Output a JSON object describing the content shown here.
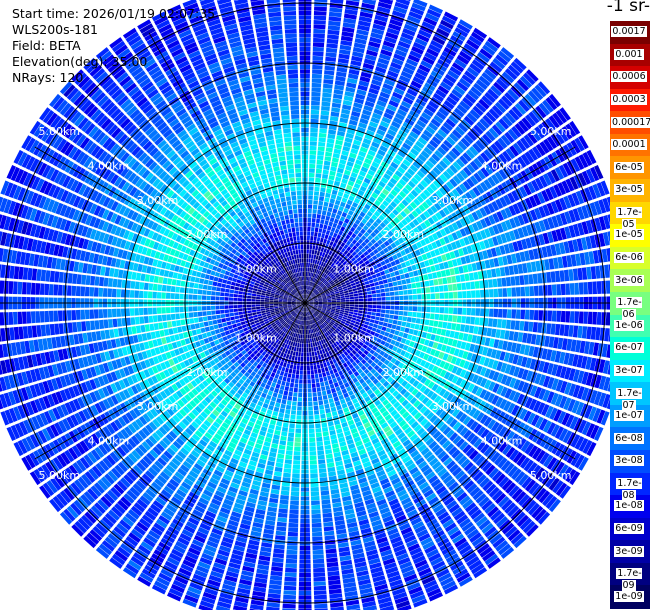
{
  "info": {
    "start_time": "Start time: 2026/01/19 02:07:35",
    "instrument": "WLS200s-181",
    "field": "Field: BETA",
    "elevation": "Elevation(deg): 35.00",
    "nrays": "NRays: 120"
  },
  "colorbar": {
    "unit_title": "-1 sr-",
    "labels": [
      "0.0017",
      "0.001",
      "0.0006",
      "0.0003",
      "0.00017",
      "0.0001",
      "6e-05",
      "3e-05",
      "1.7e-05",
      "1e-05",
      "6e-06",
      "3e-06",
      "1.7e-06",
      "1e-06",
      "6e-07",
      "3e-07",
      "1.7e-07",
      "1e-07",
      "6e-08",
      "3e-08",
      "1.7e-08",
      "1e-08",
      "6e-09",
      "3e-09",
      "1.7e-09",
      "1e-09"
    ],
    "colors": [
      "#7a0000",
      "#a80000",
      "#d40000",
      "#ff1a00",
      "#ff4d00",
      "#ff7300",
      "#ff9500",
      "#ffb300",
      "#ffd700",
      "#ffff00",
      "#d8ff2a",
      "#a8ff55",
      "#78ff80",
      "#40ffb0",
      "#00ffd8",
      "#00ecff",
      "#00c6ff",
      "#009dff",
      "#0074ff",
      "#004dff",
      "#0026ff",
      "#0000ee",
      "#0000cc",
      "#0000a6",
      "#000080",
      "#000060"
    ]
  },
  "range_rings": {
    "labels": [
      "1.00km",
      "2.00km",
      "3.00km",
      "4.00km",
      "5.00km"
    ]
  },
  "chart_data": {
    "type": "heatmap",
    "projection": "polar PPI",
    "field": "BETA",
    "elevation_deg": 35.0,
    "n_rays": 120,
    "range_rings_km": [
      1,
      2,
      3,
      4,
      5
    ],
    "max_range_km": 5.0,
    "radial_profile": {
      "range_km": [
        0.0,
        0.5,
        1.0,
        1.5,
        2.0,
        2.5,
        3.0,
        3.5,
        4.0,
        4.5,
        5.0
      ],
      "log10_beta": [
        -8.8,
        -8.6,
        -8.1,
        -7.3,
        -6.5,
        -6.4,
        -6.8,
        -7.2,
        -7.5,
        -7.6,
        -7.7
      ]
    },
    "colorbar_ticks": [
      "0.0017",
      "0.001",
      "0.0006",
      "0.0003",
      "0.00017",
      "0.0001",
      "6e-05",
      "3e-05",
      "1.7e-05",
      "1e-05",
      "6e-06",
      "3e-06",
      "1.7e-06",
      "1e-06",
      "6e-07",
      "3e-07",
      "1.7e-07",
      "1e-07",
      "6e-08",
      "3e-08",
      "1.7e-08",
      "1e-08",
      "6e-09",
      "3e-09",
      "1.7e-09",
      "1e-09"
    ]
  }
}
